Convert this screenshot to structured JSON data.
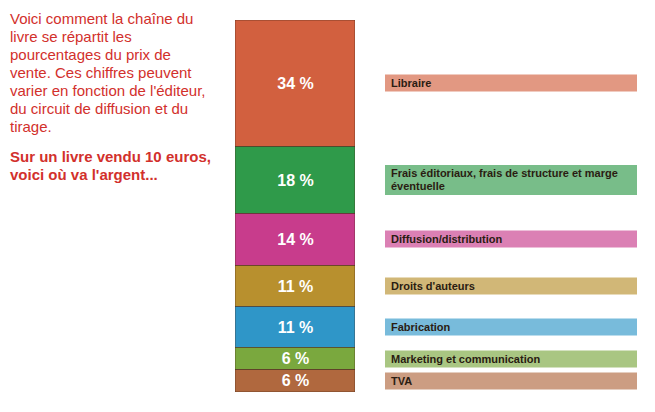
{
  "chart_data": {
    "type": "bar",
    "stacked": true,
    "title": "Voici comment la chaîne du livre se répartit les pourcentages du prix de vente. Ces chiffres peuvent varier en fonction de l'éditeur, du circuit de diffusion et du tirage.",
    "subtitle": "Sur un livre vendu 10 euros, voici où va l'argent...",
    "categories": [
      "Libraire",
      "Frais éditoriaux, frais de structure et marge éventuelle",
      "Diffusion/distribution",
      "Droits d'auteurs",
      "Fabrication",
      "Marketing et communication",
      "TVA"
    ],
    "values": [
      34,
      18,
      14,
      11,
      11,
      6,
      6
    ],
    "value_labels": [
      "34 %",
      "18 %",
      "14 %",
      "11 %",
      "11 %",
      "6 %",
      "6 %"
    ],
    "colors": [
      "#d2603f",
      "#2f9a4a",
      "#c83c8c",
      "#b8902e",
      "#2f96c8",
      "#7aa83e",
      "#b0683e"
    ],
    "ylim": [
      0,
      100
    ],
    "tick_labels": false,
    "data_labels": true
  }
}
